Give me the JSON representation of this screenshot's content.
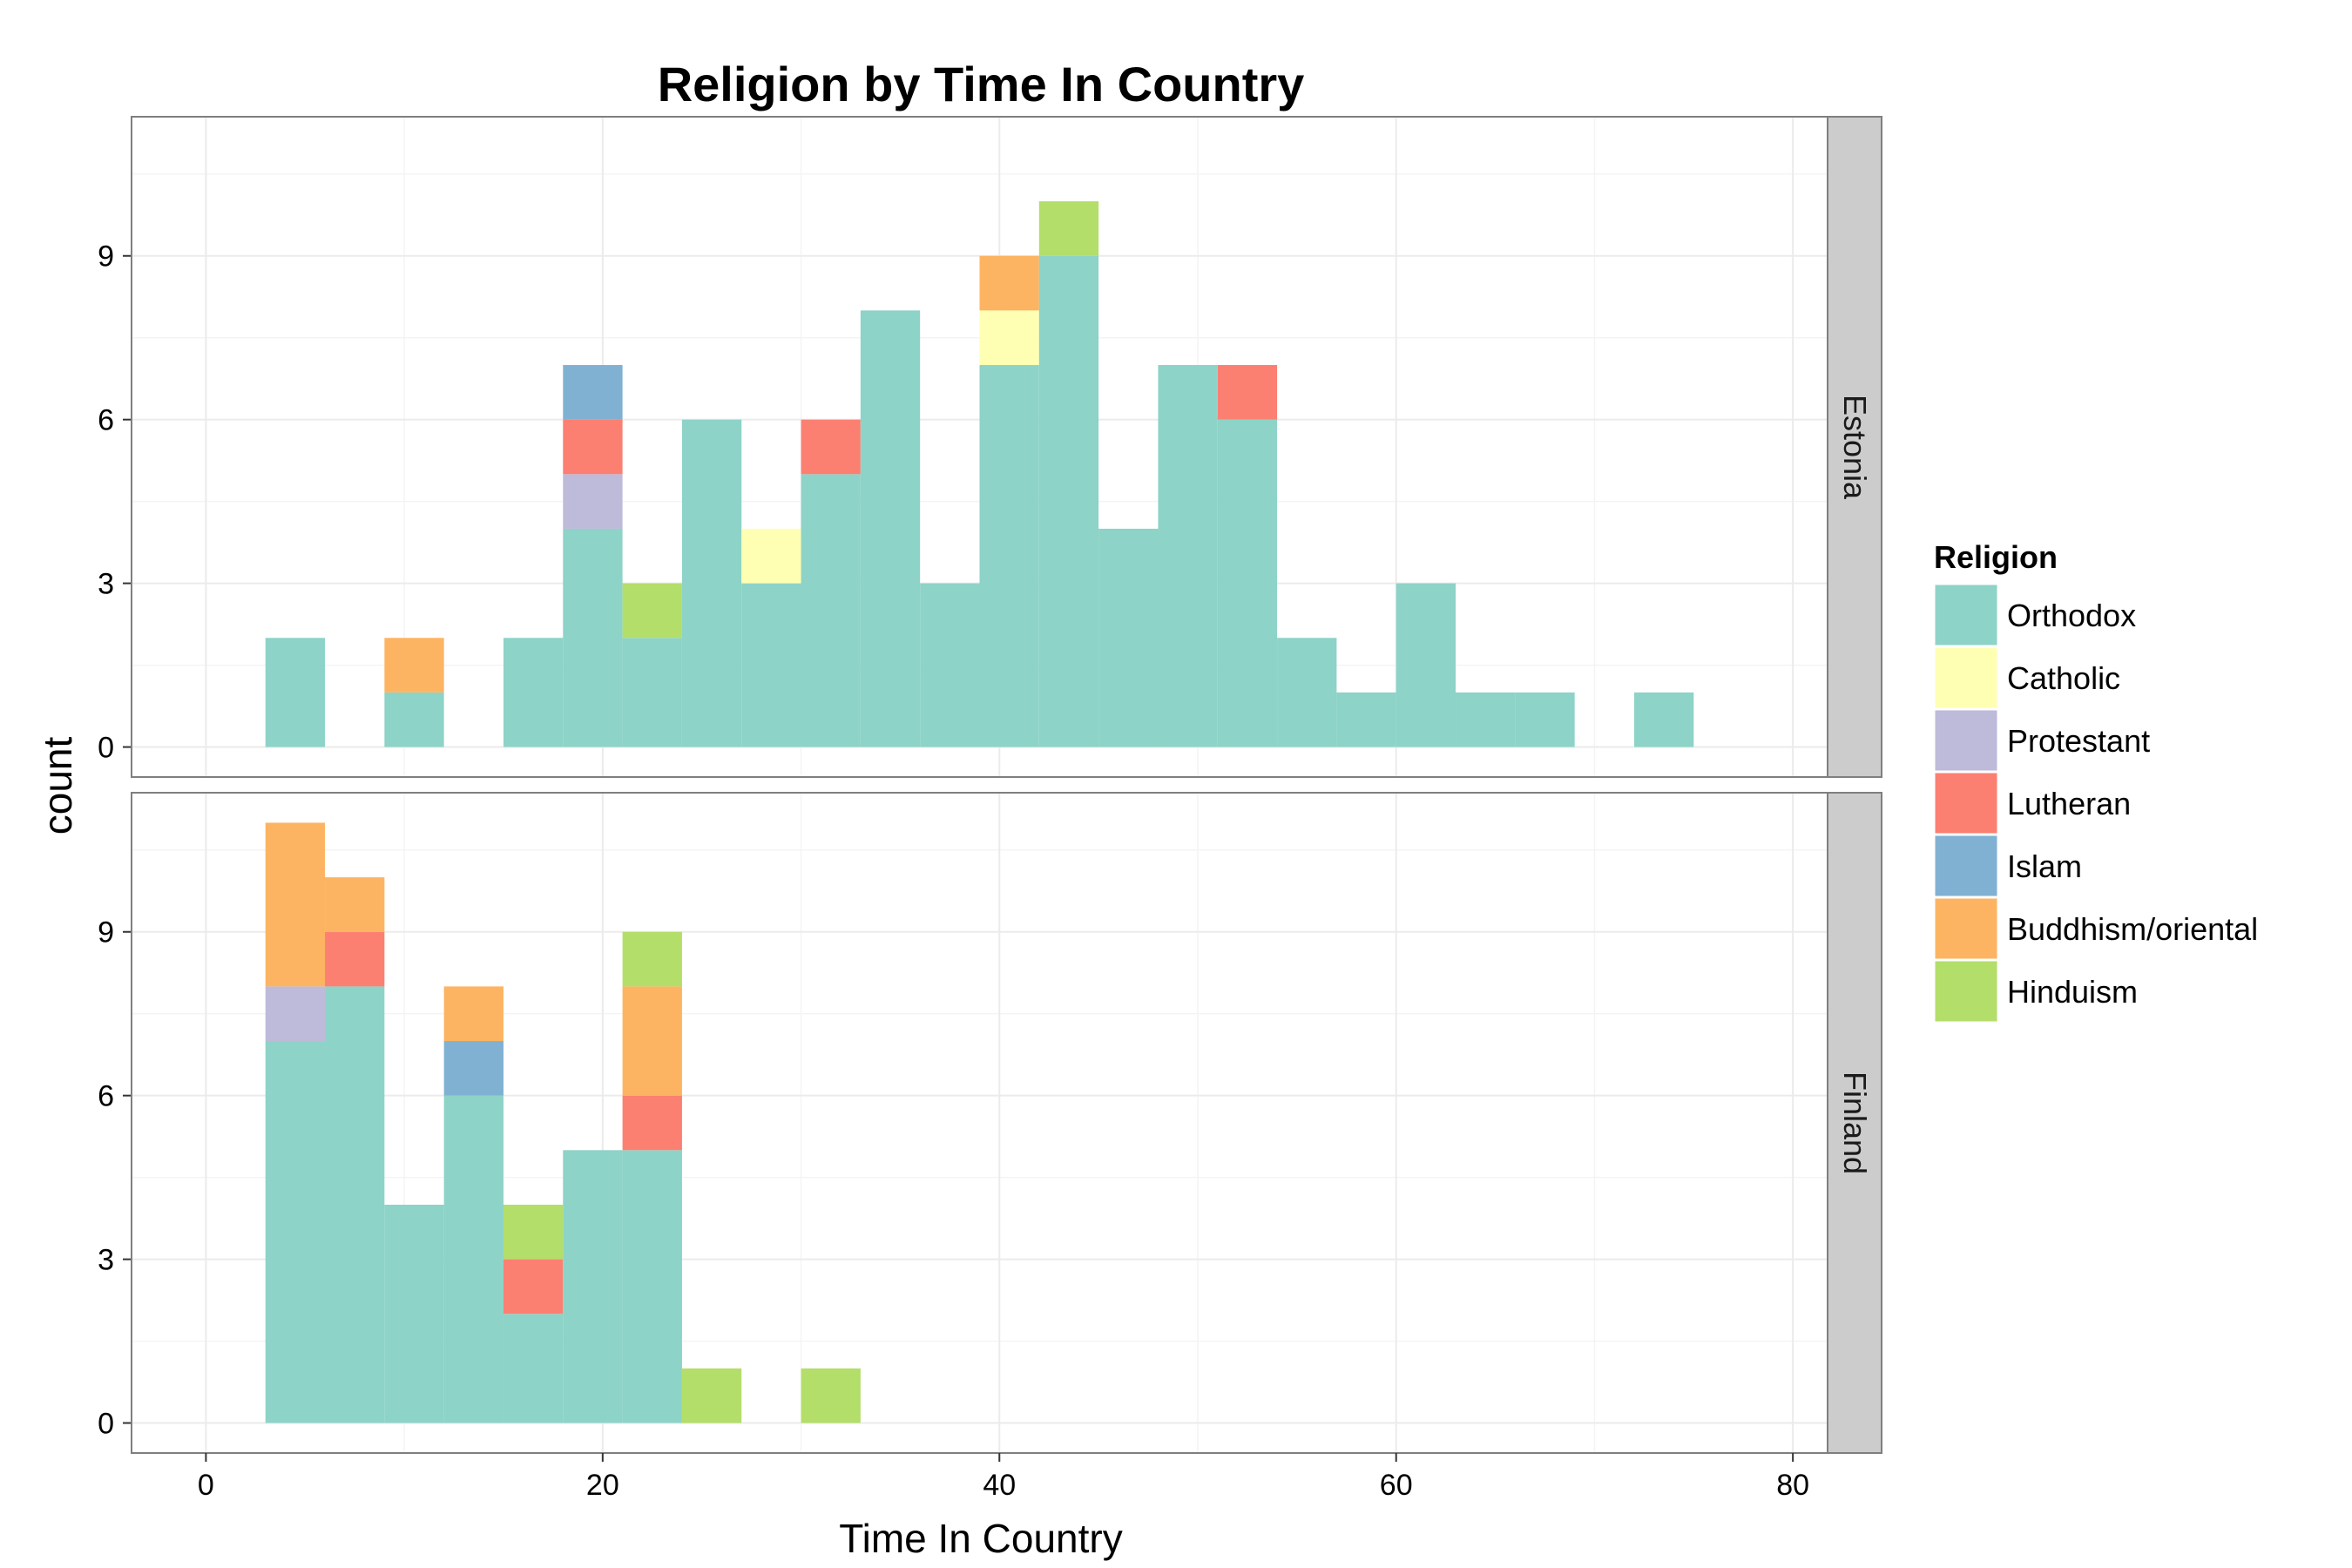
{
  "chart_data": {
    "type": "bar",
    "subtype": "stacked-histogram-faceted",
    "title": "Religion by Time In Country",
    "xlabel": "Time In Country",
    "ylabel": "count",
    "xlim": [
      -3.75,
      81.75
    ],
    "ylim": [
      -0.55,
      11.55
    ],
    "x_ticks": [
      0,
      20,
      40,
      60,
      80
    ],
    "y_ticks": [
      0,
      3,
      6,
      9
    ],
    "bin_width": 3,
    "grid": true,
    "legend": {
      "title": "Religion",
      "position": "right",
      "entries": [
        {
          "name": "Orthodox",
          "color": "#8DD3C7"
        },
        {
          "name": "Catholic",
          "color": "#FFFFB3"
        },
        {
          "name": "Protestant",
          "color": "#BEBADA"
        },
        {
          "name": "Lutheran",
          "color": "#FB8072"
        },
        {
          "name": "Islam",
          "color": "#80B1D3"
        },
        {
          "name": "Buddhism/oriental",
          "color": "#FDB462"
        },
        {
          "name": "Hinduism",
          "color": "#B3DE69"
        }
      ]
    },
    "facets": [
      {
        "name": "Estonia",
        "bins": [
          {
            "x0": 3,
            "counts": [
              2,
              0,
              0,
              0,
              0,
              0,
              0
            ]
          },
          {
            "x0": 9,
            "counts": [
              1,
              0,
              0,
              0,
              0,
              1,
              0
            ]
          },
          {
            "x0": 15,
            "counts": [
              2,
              0,
              0,
              0,
              0,
              0,
              0
            ]
          },
          {
            "x0": 18,
            "counts": [
              4,
              0,
              1,
              1,
              1,
              0,
              0
            ]
          },
          {
            "x0": 21,
            "counts": [
              2,
              0,
              0,
              0,
              0,
              0,
              1
            ]
          },
          {
            "x0": 24,
            "counts": [
              6,
              0,
              0,
              0,
              0,
              0,
              0
            ]
          },
          {
            "x0": 27,
            "counts": [
              3,
              1,
              0,
              0,
              0,
              0,
              0
            ]
          },
          {
            "x0": 30,
            "counts": [
              5,
              0,
              0,
              1,
              0,
              0,
              0
            ]
          },
          {
            "x0": 33,
            "counts": [
              8,
              0,
              0,
              0,
              0,
              0,
              0
            ]
          },
          {
            "x0": 36,
            "counts": [
              3,
              0,
              0,
              0,
              0,
              0,
              0
            ]
          },
          {
            "x0": 39,
            "counts": [
              7,
              1,
              0,
              0,
              0,
              1,
              0
            ]
          },
          {
            "x0": 42,
            "counts": [
              9,
              0,
              0,
              0,
              0,
              0,
              1
            ]
          },
          {
            "x0": 45,
            "counts": [
              4,
              0,
              0,
              0,
              0,
              0,
              0
            ]
          },
          {
            "x0": 48,
            "counts": [
              7,
              0,
              0,
              0,
              0,
              0,
              0
            ]
          },
          {
            "x0": 51,
            "counts": [
              6,
              0,
              0,
              1,
              0,
              0,
              0
            ]
          },
          {
            "x0": 54,
            "counts": [
              2,
              0,
              0,
              0,
              0,
              0,
              0
            ]
          },
          {
            "x0": 57,
            "counts": [
              1,
              0,
              0,
              0,
              0,
              0,
              0
            ]
          },
          {
            "x0": 60,
            "counts": [
              3,
              0,
              0,
              0,
              0,
              0,
              0
            ]
          },
          {
            "x0": 63,
            "counts": [
              1,
              0,
              0,
              0,
              0,
              0,
              0
            ]
          },
          {
            "x0": 66,
            "counts": [
              1,
              0,
              0,
              0,
              0,
              0,
              0
            ]
          },
          {
            "x0": 72,
            "counts": [
              1,
              0,
              0,
              0,
              0,
              0,
              0
            ]
          }
        ]
      },
      {
        "name": "Finland",
        "bins": [
          {
            "x0": 3,
            "counts": [
              7,
              0,
              1,
              0,
              0,
              3,
              0
            ]
          },
          {
            "x0": 6,
            "counts": [
              8,
              0,
              0,
              1,
              0,
              1,
              0
            ]
          },
          {
            "x0": 9,
            "counts": [
              4,
              0,
              0,
              0,
              0,
              0,
              0
            ]
          },
          {
            "x0": 12,
            "counts": [
              6,
              0,
              0,
              0,
              1,
              1,
              0
            ]
          },
          {
            "x0": 15,
            "counts": [
              2,
              0,
              0,
              1,
              0,
              0,
              1
            ]
          },
          {
            "x0": 18,
            "counts": [
              5,
              0,
              0,
              0,
              0,
              0,
              0
            ]
          },
          {
            "x0": 21,
            "counts": [
              5,
              0,
              0,
              1,
              0,
              2,
              1
            ]
          },
          {
            "x0": 24,
            "counts": [
              0,
              0,
              0,
              0,
              0,
              0,
              1
            ]
          },
          {
            "x0": 30,
            "counts": [
              0,
              0,
              0,
              0,
              0,
              0,
              1
            ]
          }
        ]
      }
    ]
  }
}
